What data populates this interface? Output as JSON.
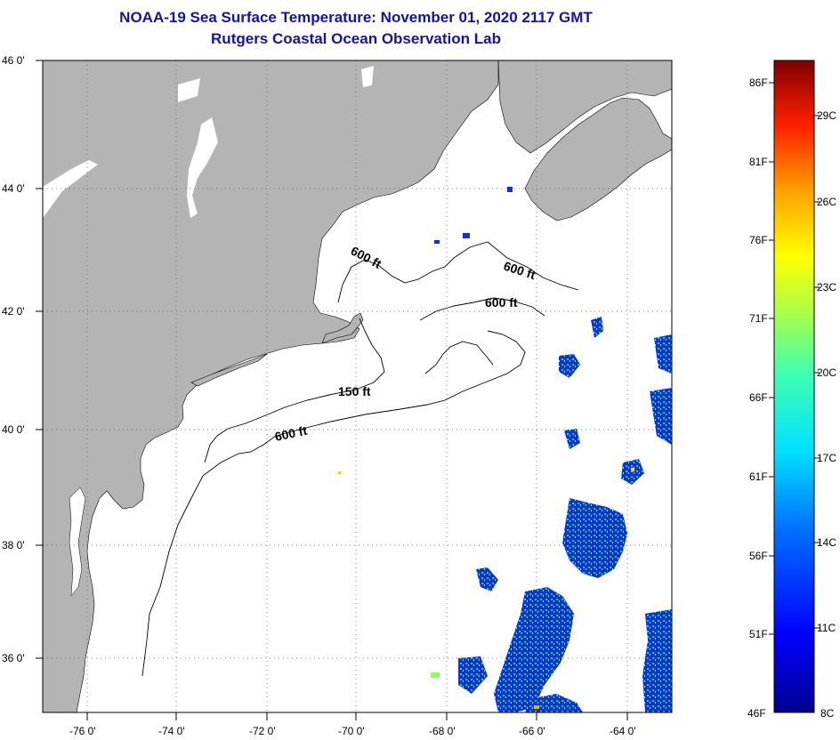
{
  "header": {
    "title": "NOAA-19 Sea Surface Temperature:  November 01, 2020 2117 GMT",
    "subtitle": "Rutgers Coastal Ocean Observation Lab"
  },
  "axes": {
    "lat_ticks": [
      "46 0'",
      "44 0'",
      "42 0'",
      "40 0'",
      "38 0'",
      "36 0'"
    ],
    "lon_ticks": [
      "-76 0'",
      "-74 0'",
      "-72 0'",
      "-70 0'",
      "-68 0'",
      "-66 0'",
      "-64 0'"
    ]
  },
  "contours": {
    "labels": [
      "600 ft",
      "600 ft",
      "600 ft",
      "150 ft",
      "600 ft"
    ]
  },
  "colorbar": {
    "fahrenheit": [
      "86F",
      "81F",
      "76F",
      "71F",
      "66F",
      "61F",
      "56F",
      "51F",
      "46F"
    ],
    "celsius": [
      "29C",
      "26C",
      "23C",
      "20C",
      "17C",
      "14C",
      "11C",
      "8C"
    ]
  },
  "colors": {
    "land": "#b4b4b4",
    "title": "#1414a0",
    "ocean_nodata": "#ffffff"
  }
}
